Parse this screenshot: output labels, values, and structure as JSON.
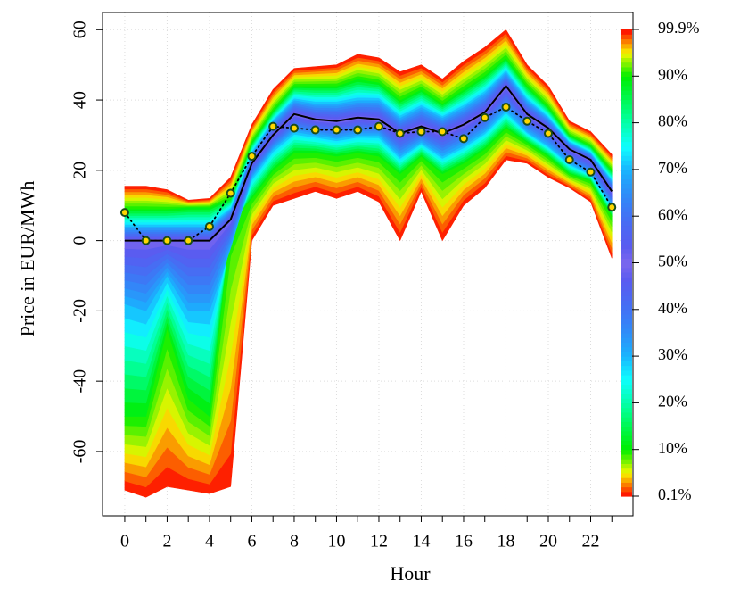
{
  "chart_data": {
    "type": "fan",
    "xlabel": "Hour",
    "ylabel": "Price in EUR/MWh",
    "x": [
      0,
      1,
      2,
      3,
      4,
      5,
      6,
      7,
      8,
      9,
      10,
      11,
      12,
      13,
      14,
      15,
      16,
      17,
      18,
      19,
      20,
      21,
      22,
      23
    ],
    "xlim": [
      -1.05,
      24
    ],
    "ylim": [
      -78.3,
      64.9
    ],
    "xticks": [
      0,
      2,
      4,
      6,
      8,
      10,
      12,
      14,
      16,
      18,
      20,
      22
    ],
    "yticks": [
      -60,
      -40,
      -20,
      0,
      20,
      40,
      60
    ],
    "grid": true,
    "quantiles": [
      {
        "level": 0.1,
        "color": "#ff0000",
        "values": [
          -71,
          -73,
          -70,
          -71,
          -72,
          -70,
          0,
          10,
          12,
          14,
          12,
          14,
          11,
          0,
          14,
          0,
          10,
          15,
          23,
          22,
          18,
          15,
          11,
          -5
        ]
      },
      {
        "level": 10,
        "color": "#00ee00",
        "values": [
          -50,
          -50,
          -25,
          -45,
          -50,
          5,
          12,
          20,
          25,
          25,
          24,
          25,
          24,
          19,
          24,
          19,
          22,
          26,
          32,
          28,
          24,
          19,
          17,
          7
        ]
      },
      {
        "level": 30,
        "color": "#19b5fe",
        "values": [
          -18,
          -20,
          -10,
          -20,
          -20,
          -2,
          18,
          26,
          31,
          30,
          29,
          30,
          30,
          24,
          28,
          24,
          27,
          31,
          37,
          31,
          27,
          22,
          19,
          10
        ]
      },
      {
        "level": 50,
        "color": "#7b68ee",
        "values": [
          0,
          0,
          0,
          0,
          0,
          6,
          22,
          30,
          36,
          34.5,
          34,
          35,
          34.5,
          30.5,
          32.5,
          30.5,
          33,
          36.5,
          44,
          36,
          32,
          26,
          23,
          14
        ]
      },
      {
        "level": 70,
        "color": "#19b5fe",
        "values": [
          4,
          4,
          4,
          4,
          4,
          9,
          25,
          34,
          40,
          39,
          39,
          40,
          40,
          35,
          38,
          35,
          38,
          42,
          48,
          40,
          35,
          28,
          25,
          17
        ]
      },
      {
        "level": 90,
        "color": "#00ee00",
        "values": [
          9,
          9,
          9,
          9.5,
          9.5,
          12,
          28,
          37,
          44,
          44,
          44,
          46,
          45,
          40,
          43,
          39,
          43,
          47,
          52,
          44,
          38,
          30,
          27,
          20
        ]
      },
      {
        "level": 99.9,
        "color": "#ff0000",
        "values": [
          15.5,
          15.5,
          14.5,
          11.5,
          12,
          18,
          33,
          43,
          49,
          49.5,
          50,
          53,
          52,
          48,
          50,
          46,
          51,
          55,
          60,
          50,
          44,
          34,
          31,
          24.5
        ]
      }
    ],
    "median": {
      "color": "#000000",
      "values": [
        0,
        0,
        0,
        0,
        0,
        6,
        22,
        30,
        36,
        34.5,
        34,
        35,
        34.5,
        30.5,
        32.5,
        30.5,
        33,
        36.5,
        44,
        36,
        32,
        26,
        23,
        14
      ]
    },
    "actual": {
      "color": "#000000",
      "marker_color": "#ffd700",
      "marker_edge": "#1a4d1a",
      "values": [
        8,
        0,
        0,
        0,
        4,
        13.5,
        24,
        32.5,
        32,
        31.5,
        31.5,
        31.5,
        32.5,
        30.5,
        31,
        31,
        29,
        35,
        38,
        34,
        30.5,
        23,
        19.5,
        9.5
      ]
    },
    "colorbar": {
      "ticks": [
        {
          "value": 0.1,
          "label": "0.1%"
        },
        {
          "value": 10,
          "label": "10%"
        },
        {
          "value": 20,
          "label": "20%"
        },
        {
          "value": 30,
          "label": "30%"
        },
        {
          "value": 40,
          "label": "40%"
        },
        {
          "value": 50,
          "label": "50%"
        },
        {
          "value": 60,
          "label": "60%"
        },
        {
          "value": 70,
          "label": "70%"
        },
        {
          "value": 80,
          "label": "80%"
        },
        {
          "value": 90,
          "label": "90%"
        },
        {
          "value": 99.9,
          "label": "99.9%"
        }
      ],
      "label_colors": [
        "#8b0000",
        "#008b00",
        "#008b8b",
        "#1f7fa0",
        "#2e5fa0",
        "#3b3b8b",
        "#2e5fa0",
        "#1f7fa0",
        "#008b8b",
        "#008b00",
        "#8b0000"
      ]
    }
  }
}
